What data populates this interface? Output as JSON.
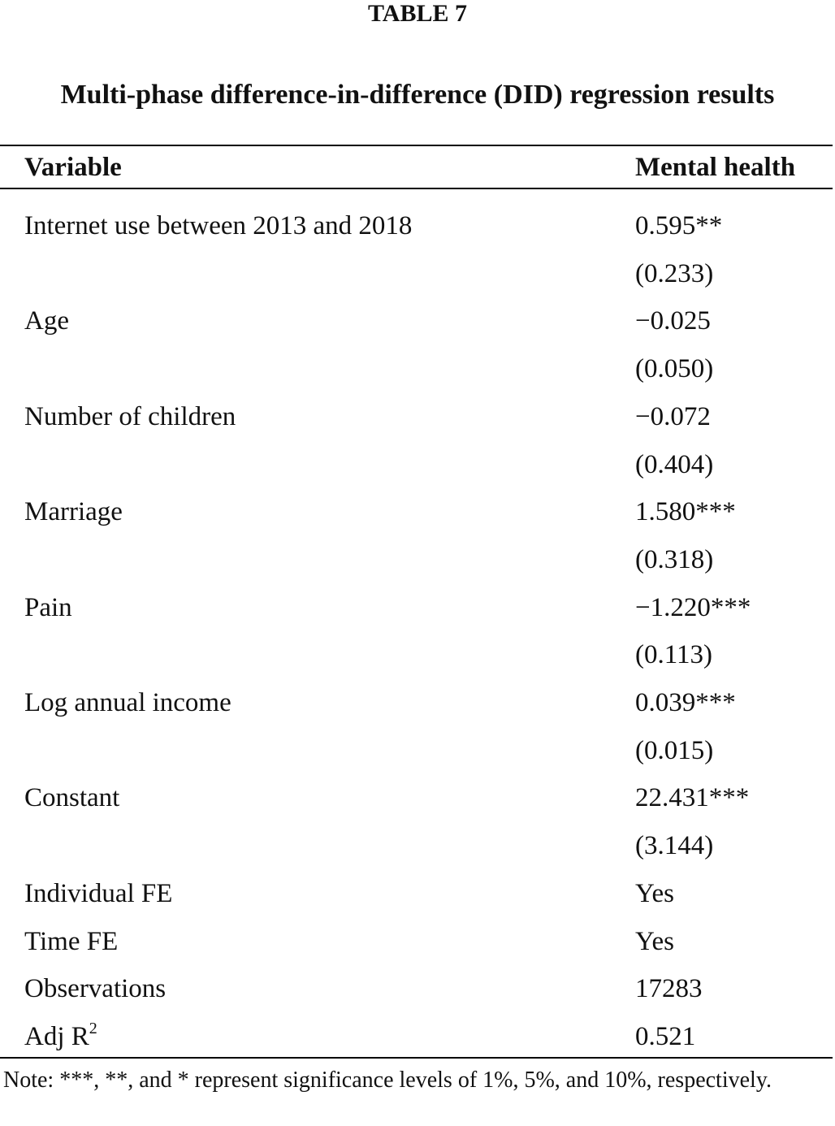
{
  "header": {
    "label": "TABLE 7",
    "title": "Multi-phase difference-in-difference (DID) regression results"
  },
  "table": {
    "columns": [
      "Variable",
      "Mental health"
    ],
    "rows": [
      {
        "variable": "Internet use between 2013 and 2018",
        "coef": "0.595**",
        "se": "(0.233)"
      },
      {
        "variable": "Age",
        "coef": "−0.025",
        "se": "(0.050)"
      },
      {
        "variable": "Number of children",
        "coef": "−0.072",
        "se": "(0.404)"
      },
      {
        "variable": "Marriage",
        "coef": "1.580***",
        "se": "(0.318)"
      },
      {
        "variable": "Pain",
        "coef": "−1.220***",
        "se": "(0.113)"
      },
      {
        "variable": "Log annual income",
        "coef": "0.039***",
        "se": "(0.015)"
      },
      {
        "variable": "Constant",
        "coef": "22.431***",
        "se": "(3.144)"
      },
      {
        "variable": "Individual FE",
        "coef": "Yes"
      },
      {
        "variable": "Time FE",
        "coef": "Yes"
      },
      {
        "variable": "Observations",
        "coef": "17283"
      },
      {
        "variable": "Adj R",
        "sup": "2",
        "coef": "0.521"
      }
    ]
  },
  "note": "Note: ***, **, and * represent significance levels of 1%, 5%, and 10%, respectively."
}
